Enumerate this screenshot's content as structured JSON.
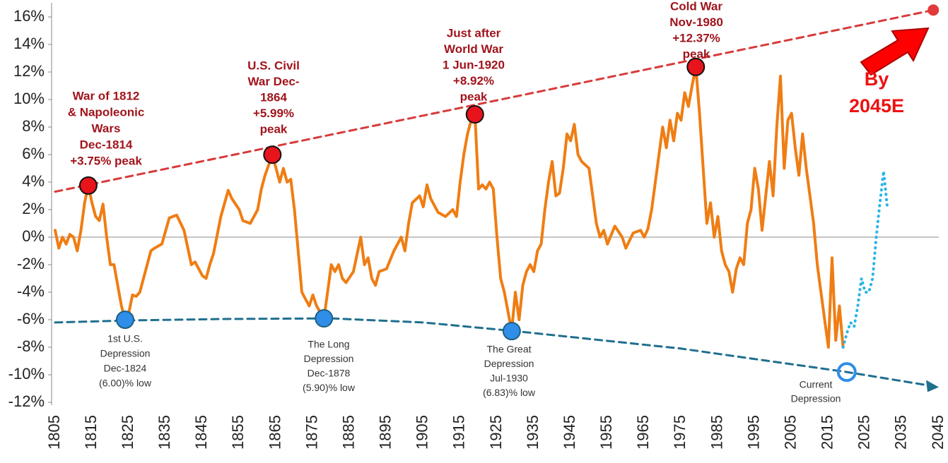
{
  "chart_data": {
    "type": "line",
    "xlim": [
      1805,
      2045
    ],
    "xticks": [
      1805,
      1815,
      1825,
      1835,
      1845,
      1855,
      1865,
      1875,
      1885,
      1895,
      1905,
      1915,
      1925,
      1935,
      1945,
      1955,
      1965,
      1975,
      1985,
      1995,
      2005,
      2015,
      2025,
      2035,
      2045
    ],
    "ylim": [
      -12,
      16
    ],
    "yticks": [
      {
        "value": 16,
        "label": "16%"
      },
      {
        "value": 14,
        "label": "14%"
      },
      {
        "value": 12,
        "label": "12%"
      },
      {
        "value": 10,
        "label": "10%"
      },
      {
        "value": 8,
        "label": "8%"
      },
      {
        "value": 6,
        "label": "6%"
      },
      {
        "value": 4,
        "label": "4%"
      },
      {
        "value": 2,
        "label": "2%"
      },
      {
        "value": 0,
        "label": "0%"
      },
      {
        "value": -2,
        "label": "-2%"
      },
      {
        "value": -4,
        "label": "-4%"
      },
      {
        "value": -6,
        "label": "-6%"
      },
      {
        "value": -8,
        "label": "-8%"
      },
      {
        "value": -10,
        "label": "-10%"
      },
      {
        "value": -12,
        "label": "-12%"
      }
    ],
    "series": [
      {
        "color": "#ef7d13",
        "style": "solid",
        "x": [
          1805,
          1806,
          1807,
          1808,
          1809,
          1810,
          1811,
          1812,
          1813,
          1814,
          1815,
          1816,
          1817,
          1818,
          1819,
          1820,
          1821,
          1822,
          1823,
          1824,
          1825,
          1826,
          1827,
          1828,
          1829,
          1830,
          1831,
          1832,
          1834,
          1836,
          1838,
          1840,
          1842,
          1843,
          1845,
          1846,
          1847,
          1848,
          1850,
          1852,
          1853,
          1855,
          1856,
          1858,
          1860,
          1861,
          1862,
          1864,
          1865,
          1866,
          1867,
          1868,
          1869,
          1870,
          1871,
          1872,
          1873,
          1874,
          1875,
          1876,
          1878,
          1879,
          1880,
          1881,
          1882,
          1883,
          1884,
          1886,
          1888,
          1889,
          1890,
          1891,
          1892,
          1893,
          1895,
          1897,
          1899,
          1900,
          1901,
          1902,
          1904,
          1905,
          1906,
          1907,
          1909,
          1911,
          1913,
          1914,
          1915,
          1916,
          1917,
          1918,
          1919,
          1920,
          1921,
          1922,
          1923,
          1924,
          1925,
          1926,
          1927,
          1929,
          1930,
          1931,
          1932,
          1933,
          1934,
          1935,
          1936,
          1937,
          1938,
          1939,
          1940,
          1941,
          1942,
          1943,
          1944,
          1945,
          1946,
          1947,
          1948,
          1950,
          1951,
          1952,
          1953,
          1954,
          1955,
          1957,
          1959,
          1960,
          1962,
          1964,
          1965,
          1966,
          1967,
          1968,
          1969,
          1970,
          1971,
          1972,
          1973,
          1974,
          1975,
          1976,
          1977,
          1978,
          1979,
          1980,
          1981,
          1982,
          1983,
          1984,
          1985,
          1986,
          1987,
          1988,
          1989,
          1990,
          1991,
          1992,
          1993,
          1994,
          1995,
          1996,
          1997,
          1998,
          1999,
          2000,
          2001,
          2002,
          2003,
          2004,
          2005,
          2006,
          2007,
          2008,
          2009,
          2010,
          2011,
          2012,
          2013,
          2014,
          2015,
          2016,
          2017,
          2018,
          2019
        ],
        "values": [
          0.5,
          -0.8,
          0,
          -0.5,
          0.2,
          0,
          -1,
          0.5,
          2.5,
          3.75,
          2.5,
          1.5,
          1.2,
          2.4,
          0,
          -2,
          -2,
          -3.5,
          -5,
          -6,
          -5.5,
          -4.2,
          -4.3,
          -4,
          -3,
          -2,
          -1,
          -0.8,
          -0.5,
          1.4,
          1.6,
          0.5,
          -2,
          -1.8,
          -2.8,
          -3,
          -2,
          -1.2,
          1.5,
          3.4,
          2.8,
          2,
          1.2,
          1,
          2,
          3.5,
          4.5,
          5.99,
          5,
          4,
          5,
          4,
          4.2,
          2,
          -1,
          -4,
          -4.5,
          -5,
          -4.2,
          -5,
          -5.9,
          -4,
          -2,
          -2.5,
          -2,
          -3,
          -3.3,
          -2.5,
          0,
          -2,
          -1.5,
          -3,
          -3.5,
          -2.5,
          -2.3,
          -1,
          0,
          -1,
          1,
          2.5,
          3,
          2.2,
          3.8,
          2.8,
          1.8,
          1.5,
          2,
          1.5,
          4,
          6,
          7.5,
          8.5,
          8.92,
          3.5,
          3.8,
          3.5,
          4,
          3.5,
          0,
          -3,
          -4,
          -6.83,
          -4,
          -6,
          -3.5,
          -2.5,
          -2,
          -2.5,
          -1,
          -0.5,
          2,
          4,
          5.5,
          3,
          3.2,
          5,
          7.5,
          7,
          8.2,
          6,
          5.5,
          5,
          3,
          1,
          0,
          0.5,
          -0.5,
          0.8,
          0,
          -0.8,
          0.3,
          0.5,
          0,
          0.6,
          2,
          4,
          6,
          8,
          6.5,
          8.5,
          7,
          9,
          8.5,
          10.5,
          9.5,
          11,
          12.37,
          9,
          5,
          1,
          2.5,
          0,
          1.5,
          -1,
          -2,
          -2.5,
          -4,
          -2.3,
          -1.5,
          -2,
          1,
          2,
          5,
          3.5,
          0.5,
          3,
          5.5,
          3,
          8,
          11.7,
          5,
          8.5,
          9,
          6.5,
          4.5,
          7.5,
          5,
          3,
          1,
          -2,
          -4,
          -6,
          -8,
          -1.5,
          -7.5,
          -5,
          -8
        ]
      },
      {
        "color": "#29b5e6",
        "style": "dotted",
        "x": [
          2019,
          2020,
          2021,
          2022,
          2023,
          2024,
          2025,
          2026,
          2027,
          2028,
          2029,
          2030,
          2031
        ],
        "values": [
          -8,
          -7,
          -6.2,
          -6.5,
          -5,
          -3,
          -4,
          -4,
          -3,
          0,
          2.5,
          4.8,
          2.2
        ]
      },
      {
        "color": "#d83a3a",
        "style": "dashed",
        "x": [
          1805,
          2043.5
        ],
        "values": [
          3.3,
          16.5
        ]
      },
      {
        "color": "#1f6f8f",
        "style": "dashed",
        "x": [
          1805,
          1825,
          1850,
          1880,
          1905,
          1930,
          1975,
          2020,
          2045
        ],
        "values": [
          -6.2,
          -6.05,
          -5.95,
          -5.9,
          -6.2,
          -6.83,
          -8.1,
          -9.8,
          -10.9
        ]
      }
    ],
    "markers": [
      {
        "x": 1814,
        "value": 3.75,
        "color": "#e8141c"
      },
      {
        "x": 1864,
        "value": 5.99,
        "color": "#e8141c"
      },
      {
        "x": 1919,
        "value": 8.92,
        "color": "#e8141c"
      },
      {
        "x": 1979,
        "value": 12.37,
        "color": "#e8141c"
      },
      {
        "x": 2043.5,
        "value": 16.5,
        "color": "#e23a3a"
      },
      {
        "x": 1824,
        "value": -6,
        "color": "#2f8ee8"
      },
      {
        "x": 1878,
        "value": -5.9,
        "color": "#2f8ee8"
      },
      {
        "x": 1929,
        "value": -6.83,
        "color": "#2f8ee8"
      },
      {
        "x": 2020,
        "value": -9.8,
        "color": "#2f8ee8"
      }
    ],
    "annotations": [
      {
        "lines": [
          "War of 1812",
          "& Napoleonic",
          "Wars",
          "Dec-1814",
          "+3.75% peak"
        ]
      },
      {
        "lines": [
          "U.S. Civil",
          "War Dec-",
          "1864",
          "+5.99%",
          "peak"
        ]
      },
      {
        "lines": [
          "Just after",
          "World War",
          "1 Jun-1920",
          "+8.92%",
          "peak"
        ]
      },
      {
        "lines": [
          "Cold War",
          "Nov-1980",
          "+12.37%",
          "peak"
        ]
      },
      {
        "lines": [
          "1st U.S.",
          "Depression",
          "Dec-1824",
          "(6.00)% low"
        ]
      },
      {
        "lines": [
          "The  Long",
          "Depression",
          "Dec-1878",
          "(5.90)% low"
        ]
      },
      {
        "lines": [
          "The  Great",
          "Depression",
          "Jul-1930",
          "(6.83)% low"
        ]
      },
      {
        "lines": [
          "Current",
          "Depression"
        ]
      },
      {
        "lines": [
          "By",
          "2045E"
        ]
      }
    ]
  }
}
